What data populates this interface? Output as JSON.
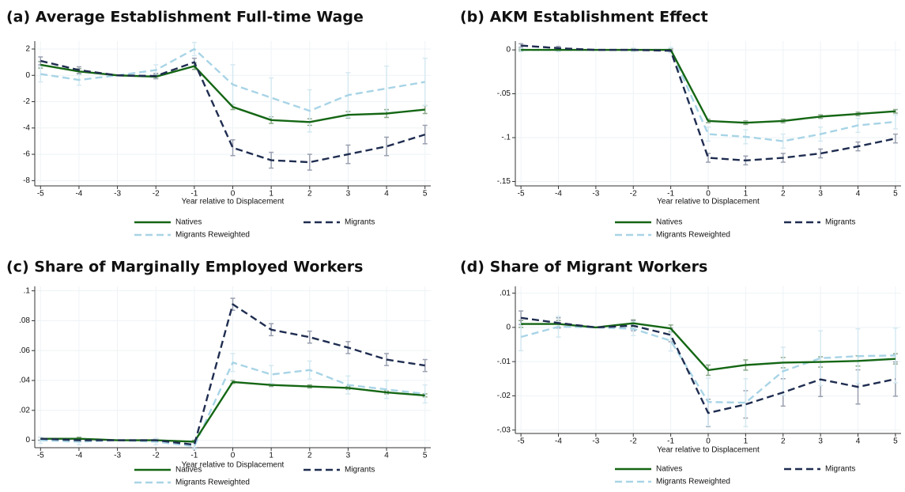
{
  "chart_data": [
    {
      "type": "line",
      "title": "(a) Average Establishment Full-time Wage",
      "x_label": "Year relative to Displacement",
      "x": [
        -5,
        -4,
        -3,
        -2,
        -1,
        0,
        1,
        2,
        3,
        4,
        5
      ],
      "xlim": [
        -5.15,
        5.15
      ],
      "xticks": [
        -5,
        -4,
        -3,
        -2,
        -1,
        0,
        1,
        2,
        3,
        4,
        5
      ],
      "ylim": [
        -8.4,
        2.6
      ],
      "yticks": [
        -8,
        -6,
        -4,
        -2,
        0,
        2
      ],
      "grid": true,
      "series": [
        {
          "name": "Natives",
          "color": "#146614",
          "line_style": "solid",
          "values": [
            0.8,
            0.3,
            0,
            -0.1,
            0.7,
            -2.4,
            -3.4,
            -3.55,
            -3.0,
            -2.9,
            -2.6
          ],
          "errors": [
            0.25,
            0.2,
            0,
            0.15,
            0.25,
            0.2,
            0.25,
            0.25,
            0.25,
            0.3,
            0.3
          ]
        },
        {
          "name": "Migrants",
          "color": "#1f2d50",
          "line_style": "dashed",
          "values": [
            1.1,
            0.4,
            0,
            -0.05,
            1.0,
            -5.5,
            -6.45,
            -6.6,
            -6.0,
            -5.4,
            -4.5
          ],
          "errors": [
            0.3,
            0.25,
            0,
            0.2,
            0.3,
            0.6,
            0.6,
            0.6,
            0.7,
            0.7,
            0.7
          ]
        },
        {
          "name": "Migrants Reweighted",
          "color": "#a8d4e6",
          "line_style": "dashed",
          "values": [
            0.1,
            -0.35,
            0,
            0.4,
            2.0,
            -0.7,
            -1.7,
            -2.7,
            -1.5,
            -1.0,
            -0.5
          ],
          "errors": [
            0.6,
            0.4,
            0,
            0.4,
            0.5,
            1.5,
            1.5,
            1.6,
            1.7,
            1.7,
            1.8
          ]
        }
      ]
    },
    {
      "type": "line",
      "title": "(b) AKM Establishment Effect",
      "x_label": "Year relative to Displacement",
      "x": [
        -5,
        -4,
        -3,
        -2,
        -1,
        0,
        1,
        2,
        3,
        4,
        5
      ],
      "xlim": [
        -5.15,
        5.15
      ],
      "xticks": [
        -5,
        -4,
        -3,
        -2,
        -1,
        0,
        1,
        2,
        3,
        4,
        5
      ],
      "ylim": [
        -0.155,
        0.01
      ],
      "yticks": [
        {
          "value": -0.15,
          "label": "-.15"
        },
        {
          "value": -0.1,
          "label": "-.1"
        },
        {
          "value": -0.05,
          "label": "-.05"
        },
        0
      ],
      "grid": true,
      "series": [
        {
          "name": "Natives",
          "color": "#146614",
          "line_style": "solid",
          "values": [
            0,
            0,
            0,
            0,
            0,
            -0.081,
            -0.083,
            -0.081,
            -0.076,
            -0.073,
            -0.07
          ],
          "errors": [
            0.001,
            0.001,
            0,
            0.001,
            0.001,
            0.002,
            0.002,
            0.002,
            0.002,
            0.002,
            0.002
          ]
        },
        {
          "name": "Migrants",
          "color": "#1f2d50",
          "line_style": "dashed",
          "values": [
            0.005,
            0.002,
            0,
            0,
            -0.001,
            -0.123,
            -0.126,
            -0.123,
            -0.118,
            -0.11,
            -0.101
          ],
          "errors": [
            0.002,
            0.002,
            0,
            0.001,
            0.002,
            0.005,
            0.005,
            0.005,
            0.005,
            0.005,
            0.005
          ]
        },
        {
          "name": "Migrants Reweighted",
          "color": "#a8d4e6",
          "line_style": "dashed",
          "values": [
            0,
            0,
            0,
            0,
            0,
            -0.096,
            -0.099,
            -0.104,
            -0.096,
            -0.086,
            -0.082
          ],
          "errors": [
            0.002,
            0.002,
            0,
            0.002,
            0.003,
            0.008,
            0.008,
            0.008,
            0.008,
            0.008,
            0.008
          ]
        }
      ]
    },
    {
      "type": "line",
      "title": "(c) Share of Marginally Employed Workers",
      "x_label": "Year relative to Displacement",
      "x": [
        -5,
        -4,
        -3,
        -2,
        -1,
        0,
        1,
        2,
        3,
        4,
        5
      ],
      "xlim": [
        -5.15,
        5.15
      ],
      "xticks": [
        -5,
        -4,
        -3,
        -2,
        -1,
        0,
        1,
        2,
        3,
        4,
        5
      ],
      "ylim": [
        -0.005,
        0.103
      ],
      "yticks": [
        0,
        {
          "value": 0.02,
          "label": ".02"
        },
        {
          "value": 0.04,
          "label": ".04"
        },
        {
          "value": 0.06,
          "label": ".06"
        },
        {
          "value": 0.08,
          "label": ".08"
        },
        {
          "value": 0.1,
          "label": ".1"
        }
      ],
      "grid": true,
      "series": [
        {
          "name": "Natives",
          "color": "#146614",
          "line_style": "solid",
          "values": [
            0.001,
            0.001,
            0,
            0,
            -0.001,
            0.039,
            0.037,
            0.036,
            0.035,
            0.032,
            0.03
          ],
          "errors": [
            0.001,
            0.001,
            0,
            0.001,
            0.001,
            0.001,
            0.001,
            0.001,
            0.001,
            0.001,
            0.001
          ]
        },
        {
          "name": "Migrants",
          "color": "#1f2d50",
          "line_style": "dashed",
          "values": [
            0.001,
            0,
            0,
            0,
            -0.003,
            0.091,
            0.074,
            0.069,
            0.062,
            0.054,
            0.05
          ],
          "errors": [
            0.001,
            0.001,
            0,
            0.001,
            0.002,
            0.004,
            0.004,
            0.004,
            0.004,
            0.004,
            0.004
          ]
        },
        {
          "name": "Migrants Reweighted",
          "color": "#a8d4e6",
          "line_style": "dashed",
          "values": [
            0,
            -0.001,
            0,
            -0.001,
            -0.004,
            0.052,
            0.044,
            0.047,
            0.037,
            0.034,
            0.031
          ],
          "errors": [
            0.002,
            0.002,
            0,
            0.002,
            0.002,
            0.006,
            0.006,
            0.006,
            0.006,
            0.006,
            0.006
          ]
        }
      ]
    },
    {
      "type": "line",
      "title": "(d) Share of Migrant Workers",
      "x_label": "Year relative to Displacement",
      "x": [
        -5,
        -4,
        -3,
        -2,
        -1,
        0,
        1,
        2,
        3,
        4,
        5
      ],
      "xlim": [
        -5.15,
        5.15
      ],
      "xticks": [
        -5,
        -4,
        -3,
        -2,
        -1,
        0,
        1,
        2,
        3,
        4,
        5
      ],
      "ylim": [
        -0.031,
        0.012
      ],
      "yticks": [
        {
          "value": -0.03,
          "label": "-.03"
        },
        {
          "value": -0.02,
          "label": "-.02"
        },
        {
          "value": -0.01,
          "label": "-.01"
        },
        0,
        {
          "value": 0.01,
          "label": ".01"
        }
      ],
      "grid": true,
      "series": [
        {
          "name": "Natives",
          "color": "#146614",
          "line_style": "solid",
          "values": [
            0.001,
            0.001,
            0,
            0.0012,
            -0.0003,
            -0.0125,
            -0.011,
            -0.0103,
            -0.0101,
            -0.0098,
            -0.0092
          ],
          "errors": [
            0.001,
            0.001,
            0,
            0.001,
            0.001,
            0.0015,
            0.0015,
            0.0015,
            0.0015,
            0.0015,
            0.0015
          ]
        },
        {
          "name": "Migrants",
          "color": "#1f2d50",
          "line_style": "dashed",
          "values": [
            0.0028,
            0.0013,
            0,
            0.0005,
            -0.0022,
            -0.025,
            -0.0225,
            -0.019,
            -0.0152,
            -0.0174,
            -0.0151
          ],
          "errors": [
            0.002,
            0.0015,
            0,
            0.0015,
            0.002,
            0.004,
            0.004,
            0.004,
            0.005,
            0.005,
            0.005
          ]
        },
        {
          "name": "Migrants Reweighted",
          "color": "#a8d4e6",
          "line_style": "dashed",
          "values": [
            -0.0028,
            0.0002,
            0,
            -0.0004,
            -0.0039,
            -0.0218,
            -0.022,
            -0.0128,
            -0.009,
            -0.0084,
            -0.0082
          ],
          "errors": [
            0.004,
            0.003,
            0,
            0.002,
            0.003,
            0.007,
            0.007,
            0.007,
            0.008,
            0.008,
            0.008
          ]
        }
      ]
    }
  ]
}
